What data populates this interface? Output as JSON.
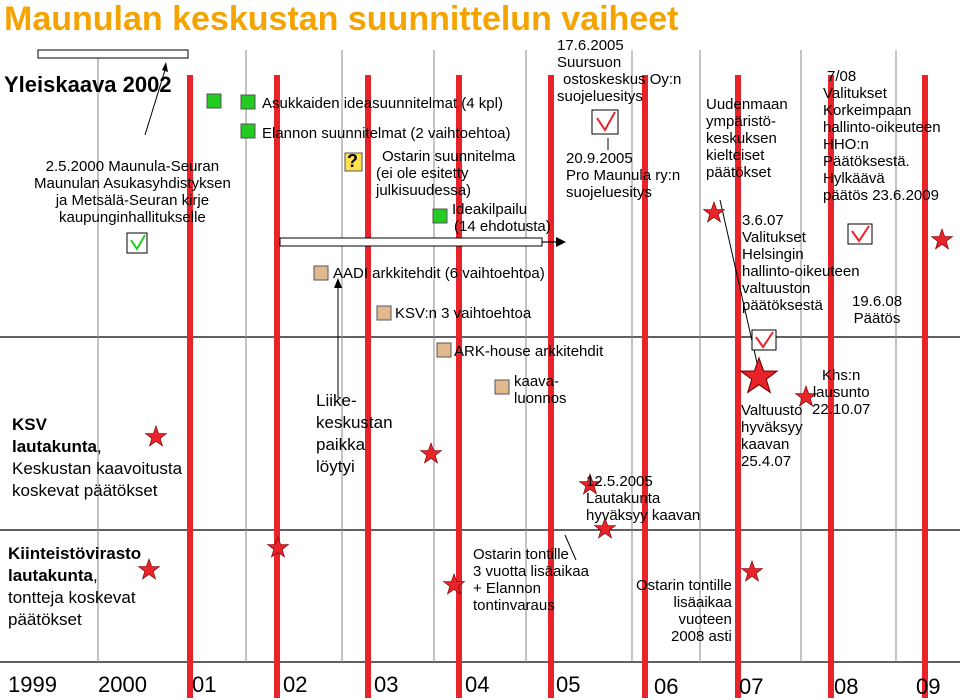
{
  "title": "Maunulan keskustan suunnittelun vaiheet",
  "colors": {
    "title": "#F5A300",
    "red_line": "#E8232A",
    "green_box": "#22CC22",
    "tan_box": "#E2B98E"
  },
  "yleiskaava": "Yleiskaava 2002",
  "left_note": [
    "2.5.2000 Maunula-Seuran",
    "Maunulan Asukasyhdistyksen",
    "ja Metsälä-Seuran kirje",
    "kaupunginhallitukselle"
  ],
  "asukkaiden": "Asukkaiden ideasuunnitelmat (4 kpl)",
  "elannon": "Elannon suunnitelmat (2 vaihtoehtoa)",
  "question_mark": "?",
  "ostarin_suunnitelma": [
    "Ostarin suunnitelma",
    "(ei ole esitetty",
    "julkisuudessa)"
  ],
  "ideakilpailu": [
    "Ideakilpailu",
    "(14 ehdotusta)"
  ],
  "aadi": "AADI arkkitehdit (6 vaihtoehtoa)",
  "ksv_vaihtoehtoa": "KSV:n 3 vaihtoehtoa",
  "arkhouse": "ARK-house arkkitehdit",
  "suursuo": [
    "17.6.2005",
    "Suursuon",
    "ostoskeskus Oy:n",
    "suojeluesitys"
  ],
  "pro_maunula": [
    "20.9.2005",
    "Pro Maunula ry:n",
    "suojeluesitys"
  ],
  "uudenmaan": [
    "Uudenmaan",
    "ympäristö-",
    "keskuksen",
    "kielteiset",
    "päätökset"
  ],
  "korkein": [
    "7/08",
    "Valitukset",
    "Korkeimpaan",
    "hallinto-oikeuteen",
    "HHO:n",
    "Päätöksestä.",
    "Hylkäävä",
    "päätös 23.6.2009"
  ],
  "helsingin": [
    "3.6.07",
    "Valitukset",
    "Helsingin",
    "hallinto-oikeuteen",
    "valtuuston",
    "päätöksestä"
  ],
  "paatos": [
    "19.6.08",
    "Päätös"
  ],
  "ksv_label": [
    "KSV",
    "lautakunta",
    ", ",
    "Keskustan kaavoitusta",
    "koskevat päätökset"
  ],
  "liike": [
    "Liike-",
    "keskustan",
    "paikka",
    "löytyi"
  ],
  "kaavaluonnos": [
    "kaava-",
    "luonnos"
  ],
  "lautakunta_hyv": [
    "12.5.2005",
    "Lautakunta",
    "hyväksyy kaavan"
  ],
  "khs": [
    "Khs:n",
    "lausunto",
    "22.10.07"
  ],
  "valtuusto": [
    "Valtuusto",
    "hyväksyy",
    "kaavan",
    "25.4.07"
  ],
  "kiinteisto_label": [
    "Kiinteistövirasto",
    "lautakunta",
    ",",
    "tontteja koskevat",
    "päätökset"
  ],
  "ostarin_tontille1": [
    "Ostarin tontille",
    "3 vuotta lisäaikaa",
    "+ Elannon",
    "tontinvaraus"
  ],
  "ostarin_tontille2": [
    "Ostarin tontille",
    "lisäaikaa",
    "vuoteen",
    "2008 asti"
  ],
  "years": [
    "1999",
    "2000",
    "01",
    "02",
    "03",
    "04",
    "05",
    "06",
    "07",
    "08",
    "09"
  ]
}
